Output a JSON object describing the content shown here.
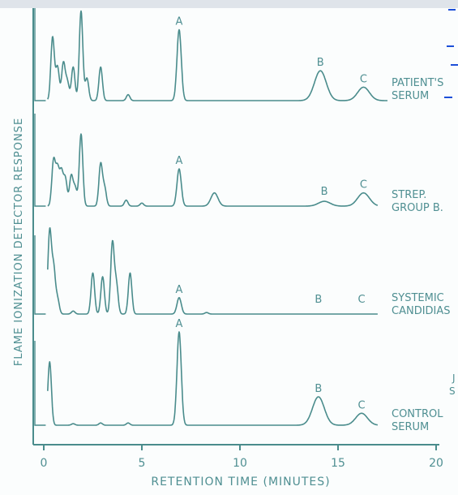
{
  "chart_data": {
    "type": "line",
    "xlabel": "RETENTION TIME (MINUTES)",
    "ylabel": "FLAME IONIZATION DETECTOR RESPONSE",
    "xlim": [
      0,
      20
    ],
    "xticks": [
      "0",
      "5",
      "10",
      "15",
      "20"
    ],
    "series": [
      {
        "name": "PATIENT'S SERUM",
        "line1": "PATIENT'S",
        "line2": "SERUM",
        "peaks": [
          {
            "label": "A",
            "x": 6.9,
            "height": 0.95
          },
          {
            "label": "B",
            "x": 14.1,
            "height": 0.4
          },
          {
            "label": "C",
            "x": 16.3,
            "height": 0.18
          }
        ],
        "early_peaks": [
          [
            0.45,
            0.85
          ],
          [
            0.7,
            0.45
          ],
          [
            1.0,
            0.5
          ],
          [
            1.2,
            0.25
          ],
          [
            1.5,
            0.45
          ],
          [
            1.9,
            1.2
          ],
          [
            2.2,
            0.3
          ],
          [
            2.9,
            0.45
          ],
          [
            4.3,
            0.08
          ]
        ]
      },
      {
        "name": "STREP. GROUP B.",
        "line1": "STREP.",
        "line2": "GROUP B.",
        "peaks": [
          {
            "label": "A",
            "x": 6.9,
            "height": 0.62
          },
          {
            "label": "B",
            "x": 14.3,
            "height": 0.08
          },
          {
            "label": "C",
            "x": 16.3,
            "height": 0.22
          }
        ],
        "other_peaks": [
          [
            8.7,
            0.22
          ]
        ],
        "early_peaks": [
          [
            0.5,
            0.75
          ],
          [
            0.7,
            0.6
          ],
          [
            0.9,
            0.55
          ],
          [
            1.1,
            0.45
          ],
          [
            1.4,
            0.5
          ],
          [
            1.6,
            0.3
          ],
          [
            1.9,
            1.2
          ],
          [
            2.9,
            0.7
          ],
          [
            3.1,
            0.3
          ],
          [
            4.2,
            0.1
          ],
          [
            5.0,
            0.05
          ]
        ]
      },
      {
        "name": "SYSTEMIC CANDIDIASIS",
        "line1": "SYSTEMIC",
        "line2": "CANDIDIAS",
        "peaks": [
          {
            "label": "A",
            "x": 6.9,
            "height": 0.22
          },
          {
            "label": "B",
            "x": 14.0,
            "height": 0.0
          },
          {
            "label": "C",
            "x": 16.2,
            "height": 0.0
          }
        ],
        "early_peaks": [
          [
            0.3,
            1.1
          ],
          [
            0.5,
            0.6
          ],
          [
            0.7,
            0.2
          ],
          [
            1.5,
            0.04
          ],
          [
            2.5,
            0.55
          ],
          [
            3.0,
            0.5
          ],
          [
            3.5,
            0.95
          ],
          [
            3.7,
            0.4
          ],
          [
            4.4,
            0.55
          ],
          [
            8.3,
            0.02
          ]
        ]
      },
      {
        "name": "CONTROL SERUM",
        "line1": "CONTROL",
        "line2": "SERUM",
        "peaks": [
          {
            "label": "A",
            "x": 6.9,
            "height": 1.25
          },
          {
            "label": "B",
            "x": 14.0,
            "height": 0.38
          },
          {
            "label": "C",
            "x": 16.2,
            "height": 0.16
          }
        ],
        "early_peaks": [
          [
            0.3,
            0.85
          ],
          [
            1.5,
            0.02
          ],
          [
            2.9,
            0.03
          ],
          [
            4.3,
            0.03
          ]
        ]
      }
    ],
    "marginal_marks": [
      "J",
      "S"
    ]
  }
}
